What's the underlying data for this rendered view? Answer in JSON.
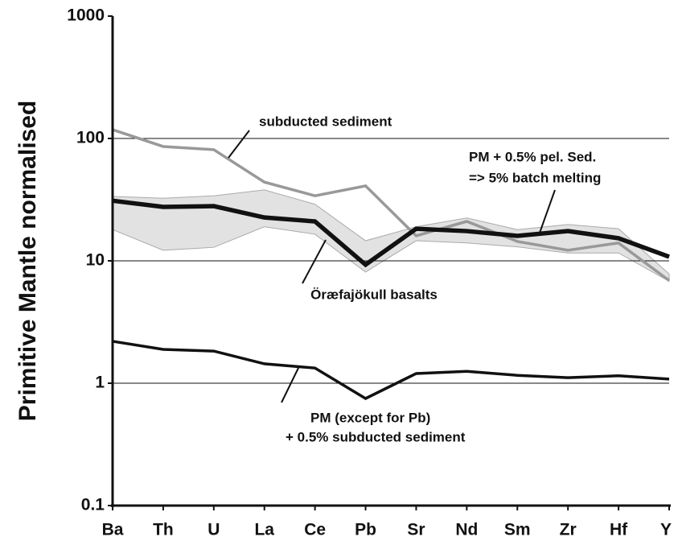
{
  "chart_data": {
    "type": "line",
    "ylabel": "Primitive Mantle normalised",
    "categories": [
      "Ba",
      "Th",
      "U",
      "La",
      "Ce",
      "Pb",
      "Sr",
      "Nd",
      "Sm",
      "Zr",
      "Hf",
      "Y"
    ],
    "ylim": [
      0.1,
      1000
    ],
    "yticks": [
      0.1,
      1,
      10,
      100,
      1000
    ],
    "log_y": true,
    "grid": true,
    "band": {
      "name": "Öræfajökull basalts",
      "color": "#e2e2e2",
      "upper": [
        33.6,
        32.5,
        34,
        38,
        29,
        14.6,
        19,
        22.4,
        18,
        19.8,
        18.3,
        7.8
      ],
      "lower": [
        18,
        12.2,
        12.9,
        19,
        16.5,
        8.1,
        14.6,
        14,
        13,
        11.6,
        11.6,
        6.8
      ]
    },
    "series": [
      {
        "name": [
          "subducted sediment"
        ],
        "color": "#999999",
        "width": 3.5,
        "values": [
          118,
          86,
          81,
          44,
          34,
          41,
          16,
          21,
          14.4,
          12.2,
          14,
          6.9
        ]
      },
      {
        "name": [
          "PM + 0.5% pel. Sed.",
          "=> 5% batch melting"
        ],
        "color": "#111111",
        "width": 5.5,
        "values": [
          31,
          27.6,
          28,
          22.6,
          21,
          9.3,
          18.3,
          17.5,
          16,
          17.5,
          15.3,
          10.8
        ]
      },
      {
        "name": [
          "PM (except for Pb)",
          "+ 0.5% subducted sediment"
        ],
        "color": "#111111",
        "width": 3.5,
        "values": [
          2.2,
          1.89,
          1.83,
          1.44,
          1.33,
          0.75,
          1.2,
          1.25,
          1.16,
          1.11,
          1.15,
          1.08
        ]
      }
    ]
  }
}
